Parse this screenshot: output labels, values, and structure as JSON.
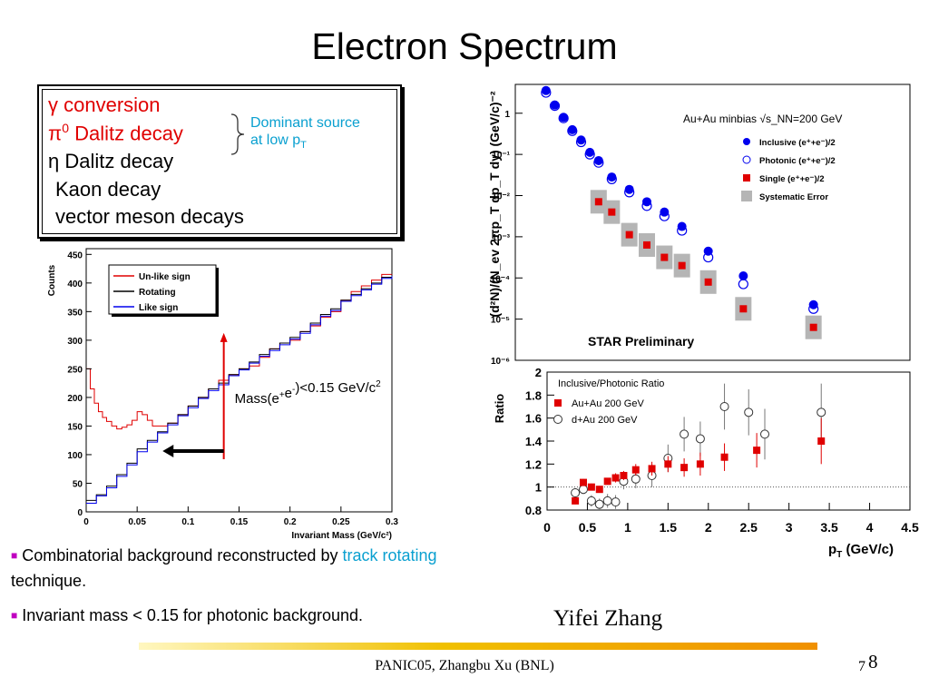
{
  "title": "Electron Spectrum",
  "sources": {
    "gamma": "γ conversion",
    "pi0_main": "π",
    "pi0_sup": "0",
    "pi0_rest": " Dalitz decay",
    "eta": "η Dalitz decay",
    "kaon": "Kaon decay",
    "vector": "vector meson decays",
    "dominant_line1": "Dominant source",
    "dominant_line2": "at low p",
    "dominant_sub": "T"
  },
  "colors": {
    "red": "#e00000",
    "cyan": "#0aa0d0",
    "blue": "#0000ee",
    "bullet": "#c000c0"
  },
  "bullets": [
    {
      "text_pre": "Combinatorial background reconstructed by ",
      "highlight": "track rotating",
      "text_post": " technique."
    },
    {
      "text": "Invariant mass < 0.15 for photonic background."
    }
  ],
  "author": "Yifei Zhang",
  "footer": "PANIC05,  Zhangbu Xu (BNL)",
  "page_small": "7",
  "page_big": "8",
  "chart_data": [
    {
      "type": "line",
      "chart": "invariant-mass",
      "xlabel": "Invariant Mass (GeV/c²)",
      "ylabel": "Counts",
      "xlim": [
        0,
        0.3
      ],
      "ylim": [
        0,
        460
      ],
      "xticks": [
        "0",
        "0.05",
        "0.1",
        "0.15",
        "0.2",
        "0.25",
        "0.3"
      ],
      "yticks": [
        "0",
        "50",
        "100",
        "150",
        "200",
        "250",
        "300",
        "350",
        "400",
        "450"
      ],
      "legend": [
        "Un-like sign",
        "Rotating",
        "Like sign"
      ],
      "annotation": {
        "pre": "Mass(e",
        "sup1": "+",
        "mid": "e",
        "sup2": "-",
        "post": ")<0.15 GeV/c",
        "sup3": "2"
      },
      "cut_x": 0.135,
      "series": [
        {
          "name": "Un-like sign",
          "color": "#e00000",
          "points": [
            [
              0,
              250
            ],
            [
              0.004,
              215
            ],
            [
              0.008,
              190
            ],
            [
              0.012,
              175
            ],
            [
              0.016,
              165
            ],
            [
              0.02,
              158
            ],
            [
              0.025,
              150
            ],
            [
              0.03,
              145
            ],
            [
              0.035,
              148
            ],
            [
              0.04,
              152
            ],
            [
              0.045,
              160
            ],
            [
              0.05,
              175
            ],
            [
              0.055,
              170
            ],
            [
              0.06,
              160
            ],
            [
              0.065,
              150
            ],
            [
              0.07,
              150
            ],
            [
              0.08,
              155
            ],
            [
              0.09,
              170
            ],
            [
              0.1,
              185
            ],
            [
              0.11,
              200
            ],
            [
              0.12,
              215
            ],
            [
              0.13,
              230
            ],
            [
              0.14,
              240
            ],
            [
              0.15,
              250
            ],
            [
              0.16,
              255
            ],
            [
              0.17,
              270
            ],
            [
              0.18,
              285
            ],
            [
              0.19,
              295
            ],
            [
              0.2,
              300
            ],
            [
              0.21,
              315
            ],
            [
              0.22,
              325
            ],
            [
              0.23,
              340
            ],
            [
              0.24,
              350
            ],
            [
              0.25,
              370
            ],
            [
              0.26,
              385
            ],
            [
              0.27,
              395
            ],
            [
              0.28,
              405
            ],
            [
              0.29,
              415
            ],
            [
              0.3,
              410
            ]
          ]
        },
        {
          "name": "Rotating",
          "color": "#000000",
          "points": [
            [
              0,
              20
            ],
            [
              0.01,
              30
            ],
            [
              0.02,
              45
            ],
            [
              0.03,
              65
            ],
            [
              0.04,
              85
            ],
            [
              0.05,
              110
            ],
            [
              0.06,
              125
            ],
            [
              0.07,
              140
            ],
            [
              0.08,
              155
            ],
            [
              0.09,
              170
            ],
            [
              0.1,
              185
            ],
            [
              0.11,
              200
            ],
            [
              0.12,
              215
            ],
            [
              0.13,
              225
            ],
            [
              0.14,
              240
            ],
            [
              0.15,
              250
            ],
            [
              0.16,
              262
            ],
            [
              0.17,
              275
            ],
            [
              0.18,
              285
            ],
            [
              0.19,
              295
            ],
            [
              0.2,
              305
            ],
            [
              0.21,
              315
            ],
            [
              0.22,
              330
            ],
            [
              0.23,
              345
            ],
            [
              0.24,
              355
            ],
            [
              0.25,
              370
            ],
            [
              0.26,
              380
            ],
            [
              0.27,
              390
            ],
            [
              0.28,
              400
            ],
            [
              0.29,
              410
            ],
            [
              0.3,
              415
            ]
          ]
        },
        {
          "name": "Like sign",
          "color": "#0000ee",
          "points": [
            [
              0,
              15
            ],
            [
              0.01,
              28
            ],
            [
              0.02,
              42
            ],
            [
              0.03,
              62
            ],
            [
              0.04,
              82
            ],
            [
              0.05,
              105
            ],
            [
              0.06,
              122
            ],
            [
              0.07,
              138
            ],
            [
              0.08,
              152
            ],
            [
              0.09,
              168
            ],
            [
              0.1,
              182
            ],
            [
              0.11,
              198
            ],
            [
              0.12,
              212
            ],
            [
              0.13,
              222
            ],
            [
              0.14,
              238
            ],
            [
              0.15,
              248
            ],
            [
              0.16,
              260
            ],
            [
              0.17,
              272
            ],
            [
              0.18,
              282
            ],
            [
              0.19,
              292
            ],
            [
              0.2,
              302
            ],
            [
              0.21,
              312
            ],
            [
              0.22,
              327
            ],
            [
              0.23,
              342
            ],
            [
              0.24,
              352
            ],
            [
              0.25,
              368
            ],
            [
              0.26,
              378
            ],
            [
              0.27,
              388
            ],
            [
              0.28,
              398
            ],
            [
              0.29,
              408
            ],
            [
              0.3,
              412
            ]
          ]
        }
      ]
    },
    {
      "type": "scatter",
      "chart": "spectrum",
      "ylabel": "(d²N)/(N_ev 2πp_T dp_T dy) (GeV/c)⁻²",
      "yscale": "log",
      "xlim": [
        0,
        4.5
      ],
      "ylim_exp": [
        -6,
        0.7
      ],
      "ytick_labels": [
        "1",
        "10⁻¹",
        "10⁻²",
        "10⁻³",
        "10⁻⁴",
        "10⁻⁵",
        "10⁻⁶"
      ],
      "ytick_exps": [
        0,
        -1,
        -2,
        -3,
        -4,
        -5,
        -6
      ],
      "header": "Au+Au minbias √s_NN=200 GeV",
      "preliminary": "STAR Preliminary",
      "legend": [
        "Inclusive (e⁺+e⁻)/2",
        "Photonic (e⁺+e⁻)/2",
        "Single (e⁺+e⁻)/2",
        "Systematic Error"
      ],
      "series": [
        {
          "name": "Inclusive (e⁺+e⁻)/2",
          "x": [
            0.35,
            0.45,
            0.55,
            0.65,
            0.75,
            0.85,
            0.95,
            1.1,
            1.3,
            1.5,
            1.7,
            1.9,
            2.2,
            2.6,
            3.4
          ],
          "log_y": [
            0.55,
            0.2,
            -0.1,
            -0.4,
            -0.65,
            -0.95,
            -1.15,
            -1.55,
            -1.85,
            -2.15,
            -2.4,
            -2.75,
            -3.35,
            -3.95,
            -4.65
          ]
        },
        {
          "name": "Photonic (e⁺+e⁻)/2",
          "x": [
            0.35,
            0.45,
            0.55,
            0.65,
            0.75,
            0.85,
            0.95,
            1.1,
            1.3,
            1.5,
            1.7,
            1.9,
            2.2,
            2.6,
            3.4
          ],
          "log_y": [
            0.5,
            0.18,
            -0.12,
            -0.43,
            -0.7,
            -1.0,
            -1.2,
            -1.6,
            -1.92,
            -2.25,
            -2.5,
            -2.85,
            -3.5,
            -4.15,
            -4.75
          ]
        },
        {
          "name": "Single (e⁺+e⁻)/2",
          "x": [
            0.95,
            1.1,
            1.3,
            1.5,
            1.7,
            1.9,
            2.2,
            2.6,
            3.4
          ],
          "log_y": [
            -2.15,
            -2.4,
            -2.95,
            -3.2,
            -3.5,
            -3.7,
            -4.1,
            -4.75,
            -5.2
          ]
        }
      ]
    },
    {
      "type": "scatter",
      "chart": "ratio",
      "title": "Inclusive/Photonic Ratio",
      "ylabel": "Ratio",
      "xlabel": "p",
      "xlabel_sub": "T",
      "xlabel_post": " (GeV/c)",
      "xlim": [
        0,
        4.5
      ],
      "ylim": [
        0.8,
        2.0
      ],
      "xtick_labels": [
        "0",
        "0.5",
        "1",
        "1.5",
        "2",
        "2.5",
        "3",
        "3.5",
        "4",
        "4.5"
      ],
      "ytick_labels": [
        "0.8",
        "1",
        "1.2",
        "1.4",
        "1.6",
        "1.8",
        "2"
      ],
      "legend": [
        "Au+Au 200 GeV",
        "d+Au 200 GeV"
      ],
      "series": [
        {
          "name": "Au+Au 200 GeV",
          "x": [
            0.35,
            0.45,
            0.55,
            0.65,
            0.75,
            0.85,
            0.95,
            1.1,
            1.3,
            1.5,
            1.7,
            1.9,
            2.2,
            2.6,
            3.4
          ],
          "y": [
            0.88,
            1.04,
            1.0,
            0.98,
            1.05,
            1.08,
            1.1,
            1.15,
            1.16,
            1.2,
            1.17,
            1.2,
            1.26,
            1.32,
            1.4
          ],
          "err": [
            0.03,
            0.03,
            0.03,
            0.03,
            0.03,
            0.04,
            0.04,
            0.05,
            0.06,
            0.07,
            0.08,
            0.1,
            0.12,
            0.15,
            0.2
          ]
        },
        {
          "name": "d+Au 200 GeV",
          "x": [
            0.35,
            0.45,
            0.55,
            0.65,
            0.75,
            0.85,
            0.95,
            1.1,
            1.3,
            1.5,
            1.7,
            1.9,
            2.2,
            2.5,
            2.7,
            3.4
          ],
          "y": [
            0.95,
            0.98,
            0.88,
            0.85,
            0.88,
            0.87,
            1.05,
            1.07,
            1.1,
            1.25,
            1.46,
            1.42,
            1.7,
            1.65,
            1.46,
            1.65
          ],
          "err": [
            0.04,
            0.04,
            0.05,
            0.05,
            0.06,
            0.06,
            0.07,
            0.08,
            0.1,
            0.12,
            0.15,
            0.15,
            0.2,
            0.2,
            0.22,
            0.25
          ]
        }
      ]
    }
  ]
}
